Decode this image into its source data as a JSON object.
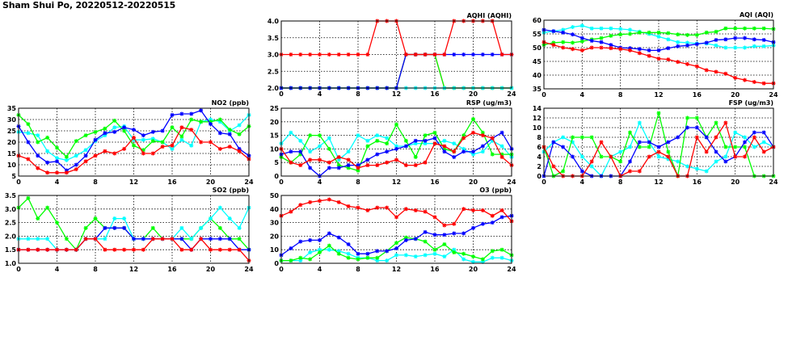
{
  "title": "Sham Shui Po, 20220512-20220515",
  "series_colors": [
    "#ff0000",
    "#0000ff",
    "#00ffff",
    "#00ff00"
  ],
  "chart_data": [
    {
      "id": "aqhi",
      "type": "line",
      "title": "AQHI (AQHI)",
      "x": [
        0,
        1,
        2,
        3,
        4,
        5,
        6,
        7,
        8,
        9,
        10,
        11,
        12,
        13,
        14,
        15,
        16,
        17,
        18,
        19,
        20,
        21,
        22,
        23,
        24
      ],
      "xticks": [
        "0",
        "4",
        "8",
        "12",
        "16",
        "20",
        "24"
      ],
      "ylim": [
        2.0,
        4.0
      ],
      "yticks": [
        "2.0",
        "2.5",
        "3.0",
        "3.5",
        "4.0"
      ],
      "grid": true,
      "series": [
        {
          "name": "red",
          "values": [
            2,
            2,
            2,
            2,
            2,
            2,
            2,
            2,
            2,
            2,
            2,
            2,
            2,
            3,
            3,
            3,
            3,
            2,
            2,
            2,
            2,
            2,
            2,
            2,
            2
          ]
        },
        {
          "name": "green",
          "values": [
            2,
            2,
            2,
            2,
            2,
            2,
            2,
            2,
            2,
            2,
            2,
            2,
            2,
            3,
            3,
            3,
            3,
            2,
            2,
            2,
            2,
            2,
            2,
            2,
            2
          ]
        },
        {
          "name": "cyan",
          "values": [
            2,
            2,
            2,
            2,
            2,
            2,
            2,
            2,
            2,
            2,
            2,
            2,
            2,
            2,
            2,
            2,
            2,
            2,
            2,
            2,
            2,
            2,
            2,
            2,
            2
          ]
        },
        {
          "name": "blue",
          "values": [
            2,
            2,
            2,
            2,
            2,
            2,
            2,
            2,
            2,
            2,
            2,
            2,
            2,
            3,
            3,
            3,
            3,
            3,
            3,
            3,
            3,
            3,
            3,
            3,
            3
          ]
        },
        {
          "name": "red-top",
          "values": [
            3,
            3,
            3,
            3,
            3,
            3,
            3,
            3,
            3,
            3,
            4,
            4,
            4,
            3,
            3,
            3,
            3,
            3,
            4,
            4,
            4,
            4,
            4,
            3,
            3
          ]
        }
      ]
    },
    {
      "id": "aqi",
      "type": "line",
      "title": "AQI (AQI)",
      "x": [
        0,
        1,
        2,
        3,
        4,
        5,
        6,
        7,
        8,
        9,
        10,
        11,
        12,
        13,
        14,
        15,
        16,
        17,
        18,
        19,
        20,
        21,
        22,
        23,
        24
      ],
      "xticks": [
        "0",
        "4",
        "8",
        "12",
        "16",
        "20",
        "24"
      ],
      "ylim": [
        35,
        60
      ],
      "yticks": [
        "35",
        "40",
        "45",
        "50",
        "55",
        "60"
      ],
      "grid": true,
      "series": [
        {
          "name": "cyan",
          "values": [
            55.5,
            56,
            56.5,
            57.5,
            58,
            57,
            57,
            57,
            56.8,
            56.5,
            55.8,
            55,
            54,
            53,
            52,
            51.8,
            51.5,
            51.5,
            50.8,
            50,
            50,
            50,
            50.5,
            50.5,
            50.8
          ]
        },
        {
          "name": "green",
          "values": [
            51,
            51.8,
            52,
            51.8,
            52.3,
            53,
            53.5,
            54.3,
            54.8,
            55,
            55.5,
            55.5,
            55.5,
            55.3,
            54.8,
            54.6,
            54.6,
            55.5,
            55.8,
            57,
            57,
            57,
            57,
            57,
            56.8
          ]
        },
        {
          "name": "blue",
          "values": [
            56.5,
            56,
            55.5,
            54.8,
            53.5,
            52.5,
            52,
            51,
            50,
            49.8,
            49.5,
            49,
            49,
            49.8,
            50.5,
            50.8,
            51.3,
            51.8,
            52.8,
            53,
            53.5,
            53.5,
            53,
            52.8,
            52
          ]
        },
        {
          "name": "red",
          "values": [
            52,
            51,
            50,
            49.5,
            49,
            50,
            50,
            49.8,
            49.5,
            49,
            48,
            47,
            46,
            45.7,
            44.8,
            44,
            43.2,
            41.8,
            41.2,
            40.5,
            39,
            38.2,
            37.5,
            37,
            37
          ]
        }
      ]
    },
    {
      "id": "no2",
      "type": "line",
      "title": "NO2 (ppb)",
      "x": [
        0,
        1,
        2,
        3,
        4,
        5,
        6,
        7,
        8,
        9,
        10,
        11,
        12,
        13,
        14,
        15,
        16,
        17,
        18,
        19,
        20,
        21,
        22,
        23,
        24
      ],
      "xticks": [
        "0",
        "4",
        "8",
        "12",
        "16",
        "20",
        "24"
      ],
      "ylim": [
        5,
        35
      ],
      "yticks": [
        "5",
        "10",
        "15",
        "20",
        "25",
        "30",
        "35"
      ],
      "grid": true,
      "series": [
        {
          "name": "cyan",
          "values": [
            24.5,
            24,
            23,
            16,
            13,
            12,
            14,
            16.5,
            20.5,
            23,
            26.5,
            27,
            21,
            21,
            21.5,
            20,
            17,
            21,
            18.5,
            29,
            30,
            29,
            25,
            27.5,
            32
          ]
        },
        {
          "name": "green",
          "values": [
            32,
            28,
            20,
            22,
            17.5,
            13.5,
            20.5,
            23,
            24.5,
            26,
            29.5,
            25,
            18.5,
            16.5,
            20.5,
            20,
            26.5,
            22.5,
            30,
            29,
            29,
            30,
            25.5,
            23.5,
            27
          ]
        },
        {
          "name": "blue",
          "values": [
            27,
            20,
            14,
            11,
            11.5,
            7.5,
            10,
            14,
            21,
            24,
            24.5,
            26.5,
            25.5,
            23,
            24.5,
            25,
            32,
            32.5,
            32.5,
            34,
            28,
            24,
            23.5,
            17,
            14
          ]
        },
        {
          "name": "red",
          "values": [
            14,
            12.5,
            8.5,
            6.5,
            6.5,
            6.5,
            8,
            11.5,
            14,
            16,
            15,
            17,
            22,
            15,
            15,
            18,
            18.5,
            26.5,
            25.5,
            20,
            20,
            17,
            18,
            16,
            12.5
          ]
        }
      ]
    },
    {
      "id": "rsp",
      "type": "line",
      "title": "RSP (ug/m3)",
      "x": [
        0,
        1,
        2,
        3,
        4,
        5,
        6,
        7,
        8,
        9,
        10,
        11,
        12,
        13,
        14,
        15,
        16,
        17,
        18,
        19,
        20,
        21,
        22,
        23,
        24
      ],
      "xticks": [
        "0",
        "4",
        "8",
        "12",
        "16",
        "20",
        "24"
      ],
      "ylim": [
        0,
        25
      ],
      "yticks": [
        "0",
        "5",
        "10",
        "15",
        "20",
        "25"
      ],
      "grid": true,
      "series": [
        {
          "name": "cyan",
          "values": [
            12,
            16,
            13,
            9,
            11,
            14,
            6,
            9,
            15,
            13,
            15,
            14,
            11,
            11,
            12,
            12,
            12,
            13,
            12,
            10,
            8,
            9,
            13,
            11,
            7
          ]
        },
        {
          "name": "green",
          "values": [
            7,
            5,
            8,
            15,
            15,
            10,
            4,
            3,
            2,
            11,
            13,
            12,
            19,
            13,
            7,
            15,
            16,
            10,
            9,
            15,
            21,
            16,
            8,
            8,
            8
          ]
        },
        {
          "name": "blue",
          "values": [
            8,
            9,
            9,
            3,
            0,
            3,
            3,
            4,
            4,
            6,
            8,
            9,
            10,
            11,
            13,
            13,
            14,
            9,
            7,
            9,
            9,
            11,
            14,
            16,
            10
          ]
        },
        {
          "name": "red",
          "values": [
            10,
            5,
            4,
            6,
            6,
            5,
            7,
            6,
            3,
            4,
            4,
            5,
            6,
            4,
            4,
            5,
            12,
            11,
            9,
            14,
            16,
            15,
            14,
            7,
            4
          ]
        }
      ]
    },
    {
      "id": "fsp",
      "type": "line",
      "title": "FSP (ug/m3)",
      "x": [
        0,
        1,
        2,
        3,
        4,
        5,
        6,
        7,
        8,
        9,
        10,
        11,
        12,
        13,
        14,
        15,
        16,
        17,
        18,
        19,
        20,
        21,
        22,
        23,
        24
      ],
      "xticks": [
        "0",
        "4",
        "8",
        "12",
        "16",
        "20",
        "24"
      ],
      "ylim": [
        0,
        14
      ],
      "yticks": [
        "0",
        "2",
        "4",
        "6",
        "8",
        "10",
        "12",
        "14"
      ],
      "grid": true,
      "series": [
        {
          "name": "cyan",
          "values": [
            5,
            7,
            8,
            7,
            4,
            2,
            0,
            4,
            5,
            6,
            11,
            7,
            4,
            3.5,
            3,
            2,
            1.5,
            1,
            3,
            4,
            9,
            8,
            6,
            7,
            6
          ]
        },
        {
          "name": "green",
          "values": [
            6,
            0,
            1,
            8,
            8,
            8,
            4,
            4,
            3,
            9,
            6,
            6,
            13,
            5,
            0,
            12,
            12,
            8,
            11,
            6,
            6,
            6,
            0,
            0,
            0
          ]
        },
        {
          "name": "blue",
          "values": [
            0,
            7,
            6,
            4,
            1,
            0,
            0,
            0,
            0,
            3,
            7,
            7,
            6,
            7,
            8,
            10,
            10,
            8,
            5,
            3,
            4,
            7,
            9,
            9,
            6
          ]
        },
        {
          "name": "red",
          "values": [
            6,
            2,
            0,
            0,
            0,
            3,
            7,
            4,
            0,
            1,
            1,
            4,
            5,
            4,
            0,
            0,
            8,
            5,
            8,
            11,
            4,
            4,
            8,
            5,
            6
          ]
        }
      ]
    },
    {
      "id": "so2",
      "type": "line",
      "title": "SO2 (ppb)",
      "x": [
        0,
        1,
        2,
        3,
        4,
        5,
        6,
        7,
        8,
        9,
        10,
        11,
        12,
        13,
        14,
        15,
        16,
        17,
        18,
        19,
        20,
        21,
        22,
        23,
        24
      ],
      "xticks": [
        "0",
        "4",
        "8",
        "12",
        "16",
        "20",
        "24"
      ],
      "ylim": [
        1.0,
        3.5
      ],
      "yticks": [
        "1.0",
        "1.5",
        "2.0",
        "2.5",
        "3.0",
        "3.5"
      ],
      "grid": true,
      "series": [
        {
          "name": "green",
          "values": [
            3.05,
            3.4,
            2.65,
            3.05,
            2.5,
            1.9,
            1.5,
            2.3,
            2.65,
            2.3,
            2.3,
            2.3,
            1.9,
            1.9,
            2.3,
            1.9,
            1.9,
            1.9,
            1.9,
            2.3,
            2.65,
            2.3,
            1.9,
            1.9,
            1.5
          ]
        },
        {
          "name": "cyan",
          "values": [
            1.9,
            1.9,
            1.9,
            1.9,
            1.5,
            1.5,
            1.5,
            1.9,
            1.9,
            1.9,
            2.65,
            2.65,
            1.9,
            1.9,
            1.9,
            1.9,
            1.9,
            2.3,
            1.9,
            2.3,
            2.65,
            3.05,
            2.65,
            2.3,
            3.05
          ]
        },
        {
          "name": "blue",
          "values": [
            1.5,
            1.5,
            1.5,
            1.5,
            1.5,
            1.5,
            1.5,
            1.9,
            1.9,
            2.3,
            2.3,
            2.3,
            1.9,
            1.9,
            1.9,
            1.9,
            1.9,
            1.9,
            1.5,
            1.9,
            1.9,
            1.9,
            1.9,
            1.5,
            1.5
          ]
        },
        {
          "name": "red",
          "values": [
            1.5,
            1.5,
            1.5,
            1.5,
            1.5,
            1.5,
            1.5,
            1.9,
            1.9,
            1.5,
            1.5,
            1.5,
            1.5,
            1.5,
            1.9,
            1.9,
            1.9,
            1.5,
            1.5,
            1.9,
            1.5,
            1.5,
            1.5,
            1.5,
            1.1
          ]
        }
      ]
    },
    {
      "id": "o3",
      "type": "line",
      "title": "O3 (ppb)",
      "x": [
        0,
        1,
        2,
        3,
        4,
        5,
        6,
        7,
        8,
        9,
        10,
        11,
        12,
        13,
        14,
        15,
        16,
        17,
        18,
        19,
        20,
        21,
        22,
        23,
        24
      ],
      "xticks": [
        "0",
        "4",
        "8",
        "12",
        "16",
        "20",
        "24"
      ],
      "ylim": [
        0,
        50
      ],
      "yticks": [
        "0",
        "10",
        "20",
        "30",
        "40",
        "50"
      ],
      "grid": true,
      "series": [
        {
          "name": "cyan",
          "values": [
            2,
            2,
            2,
            8,
            10,
            10,
            9,
            7,
            4,
            4,
            2,
            2,
            6,
            6,
            5,
            6,
            7,
            5,
            10,
            3,
            1,
            1,
            4,
            4,
            2
          ]
        },
        {
          "name": "green",
          "values": [
            2,
            2,
            4,
            3,
            8,
            13,
            7,
            4,
            3,
            4,
            4,
            9,
            15,
            19,
            18,
            16,
            10,
            14,
            8,
            7,
            5,
            3,
            9,
            10,
            6
          ]
        },
        {
          "name": "blue",
          "values": [
            6,
            11,
            16,
            17,
            17,
            22,
            19,
            14,
            7,
            7,
            9,
            9,
            11,
            17,
            18,
            23,
            21,
            21,
            22,
            22,
            26,
            29,
            30,
            34,
            35
          ]
        },
        {
          "name": "red",
          "values": [
            35,
            38,
            43,
            45,
            46,
            47,
            45,
            42,
            41,
            39,
            41,
            41,
            34,
            40,
            39,
            38,
            34,
            28,
            29,
            40,
            39,
            39,
            35,
            39,
            31
          ]
        }
      ]
    }
  ]
}
